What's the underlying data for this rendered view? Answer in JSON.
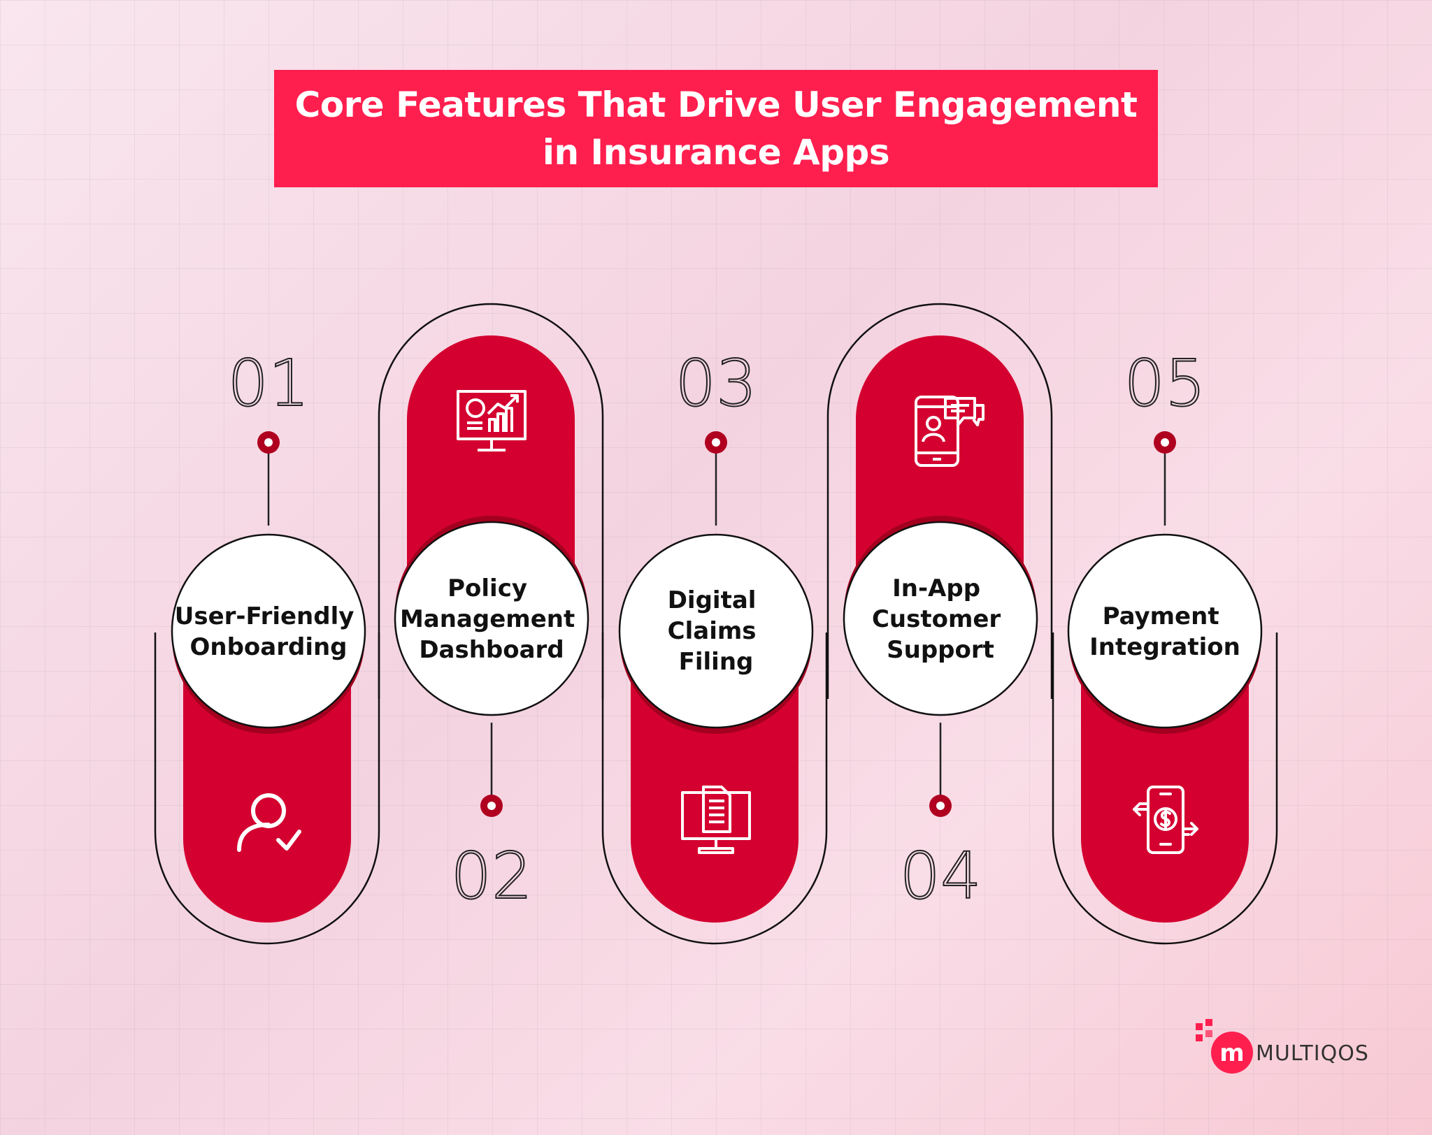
{
  "title": {
    "line1": "Core Features That Drive User Engagement",
    "line2": "in Insurance Apps"
  },
  "features": [
    {
      "number": "01",
      "lines": [
        "User-Friendly",
        "Onboarding"
      ],
      "icon": "user-check-icon"
    },
    {
      "number": "02",
      "lines": [
        "Policy",
        "Management",
        "Dashboard"
      ],
      "icon": "dashboard-monitor-icon"
    },
    {
      "number": "03",
      "lines": [
        "Digital",
        "Claims",
        "Filing"
      ],
      "icon": "document-monitor-icon"
    },
    {
      "number": "04",
      "lines": [
        "In-App",
        "Customer",
        "Support"
      ],
      "icon": "phone-chat-icon"
    },
    {
      "number": "05",
      "lines": [
        "Payment",
        "Integration"
      ],
      "icon": "phone-payment-icon"
    }
  ],
  "logo": {
    "text": "MULTIQOS",
    "icon": "multiqos-logo-icon"
  },
  "colors": {
    "accent": "#ff1f4f",
    "pill": "#d40030",
    "pill_shadow": "#a3001f",
    "circle": "#ffffff",
    "outline": "#111111"
  }
}
